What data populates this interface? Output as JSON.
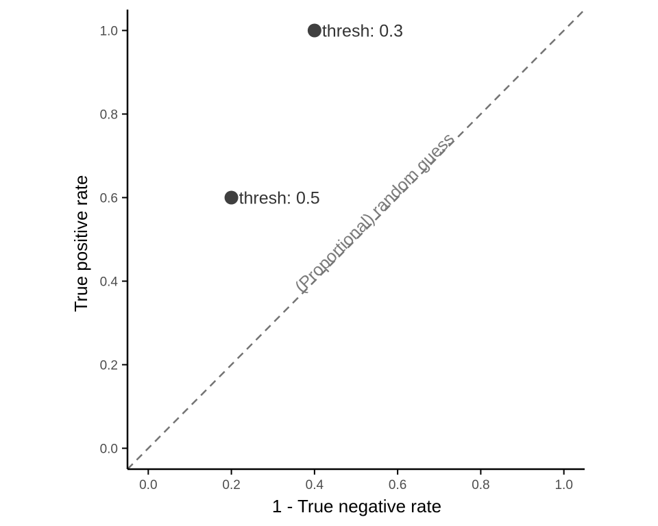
{
  "chart_data": {
    "type": "scatter",
    "title": "",
    "xlabel": "1 - True negative rate",
    "ylabel": "True positive rate",
    "xlim": [
      -0.05,
      1.05
    ],
    "ylim": [
      -0.05,
      1.05
    ],
    "x_ticks": [
      0.0,
      0.2,
      0.4,
      0.6,
      0.8,
      1.0
    ],
    "y_ticks": [
      0.0,
      0.2,
      0.4,
      0.6,
      0.8,
      1.0
    ],
    "x_tick_labels": [
      "0.0",
      "0.2",
      "0.4",
      "0.6",
      "0.8",
      "1.0"
    ],
    "y_tick_labels": [
      "0.0",
      "0.2",
      "0.4",
      "0.6",
      "0.8",
      "1.0"
    ],
    "grid": false,
    "legend": "none",
    "points": [
      {
        "x": 0.2,
        "y": 0.6,
        "label": "thresh: 0.5"
      },
      {
        "x": 0.4,
        "y": 1.0,
        "label": "thresh: 0.3"
      }
    ],
    "reference_line": {
      "label": "(Proportional) random guess",
      "style": "dashed",
      "from": [
        -0.05,
        -0.05
      ],
      "to": [
        1.05,
        1.05
      ],
      "label_at": [
        0.37,
        0.37
      ]
    },
    "colors": {
      "point": "#3f3f3f",
      "point_label": "#333333",
      "reference_line": "#737373",
      "reference_label": "#7a7a7a",
      "axis": "#000000",
      "tick_label": "#4d4d4d"
    }
  }
}
